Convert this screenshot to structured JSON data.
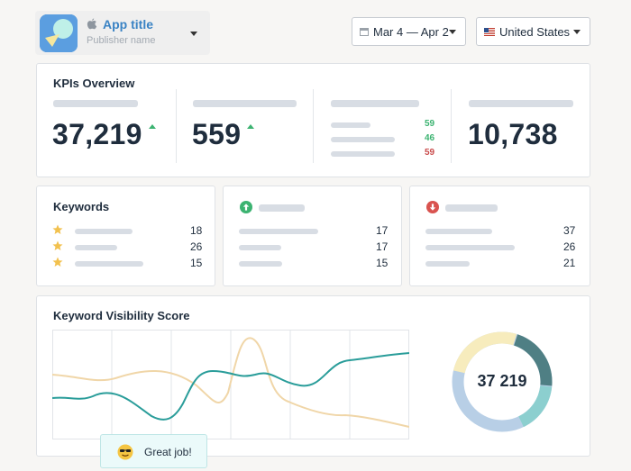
{
  "header": {
    "app_title": "App title",
    "publisher": "Publisher name",
    "date_range": "Mar 4 — Apr 2",
    "country": "United States",
    "colors": {
      "accent": "#3a83c4",
      "icon_bg": "#4a90d9"
    }
  },
  "kpis": {
    "title": "KPIs Overview",
    "value1": "37,219",
    "value2": "559",
    "mini": [
      "59",
      "46",
      "59"
    ],
    "value4": "10,738",
    "colors": {
      "up": "#3cb371",
      "down": "#c94b4b"
    }
  },
  "keywords": {
    "title": "Keywords",
    "rows": [
      "18",
      "26",
      "15"
    ]
  },
  "up_card": {
    "rows": [
      "17",
      "17",
      "15"
    ]
  },
  "down_card": {
    "rows": [
      "37",
      "26",
      "21"
    ]
  },
  "visibility": {
    "title": "Keyword Visibility Score",
    "donut_value": "37 219",
    "tooltip": "Great job!"
  }
}
